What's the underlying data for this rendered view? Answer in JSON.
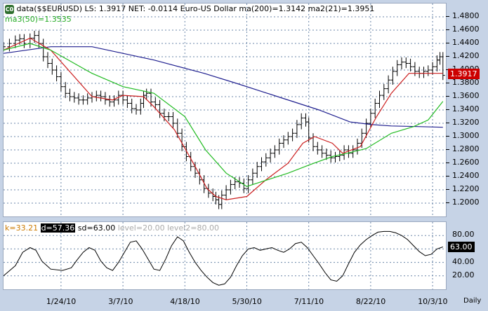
{
  "header": {
    "logo": "C0",
    "text": "data($$EURUSD) LS: 1.3917  NET: -0.0114  Euro-US Dollar ma(200)=1.3142  ma2(21)=1.3951",
    "ma3": "ma3(50)=1.3535"
  },
  "osc_header": {
    "k": "k=33.21",
    "d": "d=57.36",
    "sd": "sd=63.00",
    "level1": "level=20.00",
    "level2": "level2=80.00"
  },
  "last_price_tag": "1.3917",
  "osc_value_tag": "63.00",
  "period_label": "Daily",
  "colors": {
    "price": "#000000",
    "ma200": "#1f1f8f",
    "ma21": "#cc1f1f",
    "ma50": "#22bb22",
    "grid": "#6a86a8",
    "tag_bg": "#cc0000"
  },
  "chart_data": [
    {
      "type": "ohlc",
      "title": "data($$EURUSD) LS: 1.3917 NET: -0.0114 Euro-US Dollar",
      "ylim": [
        1.18,
        1.5
      ],
      "y_ticks": [
        "1.4800",
        "1.4600",
        "1.4400",
        "1.4200",
        "1.4000",
        "1.3800",
        "1.3600",
        "1.3400",
        "1.3200",
        "1.3000",
        "1.2800",
        "1.2600",
        "1.2400",
        "1.2200",
        "1.2000"
      ],
      "x_ticks": [
        "1/24/10",
        "3/7/10",
        "4/18/10",
        "5/30/10",
        "7/11/10",
        "8/22/10",
        "10/3/10"
      ],
      "x_range_days": [
        -18,
        282
      ],
      "grid": "dashed",
      "series": [
        {
          "name": "ma(200)",
          "values": [
            [
              -18,
              1.425
            ],
            [
              14,
              1.435
            ],
            [
              42,
              1.435
            ],
            [
              84,
              1.415
            ],
            [
              118,
              1.395
            ],
            [
              140,
              1.38
            ],
            [
              168,
              1.36
            ],
            [
              196,
              1.34
            ],
            [
              217,
              1.322
            ],
            [
              232,
              1.318
            ],
            [
              245,
              1.316
            ],
            [
              265,
              1.315
            ],
            [
              280,
              1.314
            ]
          ]
        },
        {
          "name": "ma2(21)",
          "values": [
            [
              -18,
              1.43
            ],
            [
              0,
              1.448
            ],
            [
              14,
              1.43
            ],
            [
              42,
              1.36
            ],
            [
              56,
              1.355
            ],
            [
              63,
              1.362
            ],
            [
              77,
              1.36
            ],
            [
              84,
              1.345
            ],
            [
              98,
              1.31
            ],
            [
              112,
              1.255
            ],
            [
              120,
              1.222
            ],
            [
              126,
              1.21
            ],
            [
              133,
              1.205
            ],
            [
              147,
              1.21
            ],
            [
              160,
              1.235
            ],
            [
              175,
              1.26
            ],
            [
              185,
              1.29
            ],
            [
              193,
              1.3
            ],
            [
              205,
              1.29
            ],
            [
              212,
              1.275
            ],
            [
              224,
              1.285
            ],
            [
              235,
              1.33
            ],
            [
              245,
              1.365
            ],
            [
              257,
              1.395
            ],
            [
              270,
              1.395
            ],
            [
              280,
              1.395
            ]
          ]
        },
        {
          "name": "ma3(50)",
          "values": [
            [
              -18,
              1.43
            ],
            [
              0,
              1.44
            ],
            [
              14,
              1.43
            ],
            [
              42,
              1.395
            ],
            [
              63,
              1.375
            ],
            [
              84,
              1.365
            ],
            [
              105,
              1.33
            ],
            [
              119,
              1.28
            ],
            [
              133,
              1.245
            ],
            [
              147,
              1.225
            ],
            [
              161,
              1.235
            ],
            [
              175,
              1.245
            ],
            [
              190,
              1.258
            ],
            [
              205,
              1.27
            ],
            [
              215,
              1.275
            ],
            [
              228,
              1.282
            ],
            [
              245,
              1.305
            ],
            [
              260,
              1.315
            ],
            [
              270,
              1.325
            ],
            [
              280,
              1.353
            ]
          ]
        },
        {
          "name": "EURUSD",
          "values": [
            [
              -18,
              1.435
            ],
            [
              -14,
              1.44
            ],
            [
              -10,
              1.445
            ],
            [
              -7,
              1.447
            ],
            [
              -4,
              1.44
            ],
            [
              0,
              1.448
            ],
            [
              3,
              1.452
            ],
            [
              6,
              1.44
            ],
            [
              9,
              1.42
            ],
            [
              12,
              1.41
            ],
            [
              15,
              1.4
            ],
            [
              18,
              1.39
            ],
            [
              21,
              1.375
            ],
            [
              24,
              1.365
            ],
            [
              27,
              1.36
            ],
            [
              30,
              1.358
            ],
            [
              33,
              1.355
            ],
            [
              36,
              1.355
            ],
            [
              39,
              1.358
            ],
            [
              42,
              1.36
            ],
            [
              45,
              1.362
            ],
            [
              48,
              1.36
            ],
            [
              51,
              1.355
            ],
            [
              54,
              1.352
            ],
            [
              57,
              1.355
            ],
            [
              60,
              1.362
            ],
            [
              63,
              1.355
            ],
            [
              66,
              1.35
            ],
            [
              69,
              1.342
            ],
            [
              72,
              1.34
            ],
            [
              75,
              1.35
            ],
            [
              77,
              1.362
            ],
            [
              79,
              1.365
            ],
            [
              82,
              1.352
            ],
            [
              85,
              1.348
            ],
            [
              88,
              1.335
            ],
            [
              91,
              1.33
            ],
            [
              94,
              1.33
            ],
            [
              97,
              1.32
            ],
            [
              100,
              1.305
            ],
            [
              103,
              1.285
            ],
            [
              106,
              1.27
            ],
            [
              109,
              1.255
            ],
            [
              112,
              1.245
            ],
            [
              115,
              1.235
            ],
            [
              118,
              1.222
            ],
            [
              121,
              1.215
            ],
            [
              124,
              1.21
            ],
            [
              126,
              1.205
            ],
            [
              128,
              1.198
            ],
            [
              130,
              1.212
            ],
            [
              133,
              1.22
            ],
            [
              136,
              1.228
            ],
            [
              139,
              1.232
            ],
            [
              142,
              1.23
            ],
            [
              145,
              1.222
            ],
            [
              148,
              1.235
            ],
            [
              151,
              1.245
            ],
            [
              154,
              1.255
            ],
            [
              157,
              1.262
            ],
            [
              160,
              1.268
            ],
            [
              163,
              1.275
            ],
            [
              166,
              1.28
            ],
            [
              169,
              1.29
            ],
            [
              172,
              1.295
            ],
            [
              175,
              1.3
            ],
            [
              178,
              1.305
            ],
            [
              181,
              1.318
            ],
            [
              184,
              1.328
            ],
            [
              187,
              1.322
            ],
            [
              189,
              1.298
            ],
            [
              192,
              1.285
            ],
            [
              195,
              1.28
            ],
            [
              198,
              1.275
            ],
            [
              201,
              1.272
            ],
            [
              204,
              1.268
            ],
            [
              207,
              1.27
            ],
            [
              210,
              1.272
            ],
            [
              213,
              1.28
            ],
            [
              216,
              1.275
            ],
            [
              219,
              1.28
            ],
            [
              222,
              1.29
            ],
            [
              225,
              1.305
            ],
            [
              228,
              1.32
            ],
            [
              231,
              1.335
            ],
            [
              234,
              1.35
            ],
            [
              237,
              1.362
            ],
            [
              240,
              1.372
            ],
            [
              243,
              1.385
            ],
            [
              246,
              1.398
            ],
            [
              249,
              1.408
            ],
            [
              252,
              1.412
            ],
            [
              255,
              1.41
            ],
            [
              258,
              1.405
            ],
            [
              261,
              1.398
            ],
            [
              264,
              1.395
            ],
            [
              267,
              1.398
            ],
            [
              270,
              1.4
            ],
            [
              273,
              1.405
            ],
            [
              276,
              1.415
            ],
            [
              278,
              1.42
            ],
            [
              280,
              1.392
            ]
          ]
        }
      ]
    },
    {
      "type": "line",
      "title": "k=33.21 d=57.36 sd=63.00 level=20.00 level2=80.00",
      "ylim": [
        0,
        100
      ],
      "y_ticks": [
        "80.00",
        "60.00",
        "40.00",
        "20.00"
      ],
      "x_range_days": [
        -18,
        282
      ],
      "grid": "dashed",
      "series": [
        {
          "name": "sd",
          "values": [
            [
              -18,
              20
            ],
            [
              -10,
              35
            ],
            [
              -5,
              55
            ],
            [
              0,
              62
            ],
            [
              4,
              58
            ],
            [
              8,
              42
            ],
            [
              14,
              30
            ],
            [
              22,
              28
            ],
            [
              28,
              32
            ],
            [
              32,
              44
            ],
            [
              36,
              55
            ],
            [
              40,
              62
            ],
            [
              44,
              58
            ],
            [
              48,
              42
            ],
            [
              52,
              32
            ],
            [
              56,
              28
            ],
            [
              60,
              40
            ],
            [
              64,
              55
            ],
            [
              68,
              70
            ],
            [
              72,
              72
            ],
            [
              76,
              60
            ],
            [
              80,
              45
            ],
            [
              84,
              30
            ],
            [
              88,
              28
            ],
            [
              92,
              45
            ],
            [
              96,
              65
            ],
            [
              100,
              78
            ],
            [
              104,
              72
            ],
            [
              108,
              55
            ],
            [
              112,
              40
            ],
            [
              116,
              28
            ],
            [
              120,
              18
            ],
            [
              124,
              10
            ],
            [
              128,
              6
            ],
            [
              132,
              8
            ],
            [
              136,
              18
            ],
            [
              140,
              35
            ],
            [
              144,
              50
            ],
            [
              148,
              60
            ],
            [
              152,
              62
            ],
            [
              156,
              58
            ],
            [
              160,
              60
            ],
            [
              164,
              62
            ],
            [
              168,
              58
            ],
            [
              172,
              55
            ],
            [
              176,
              60
            ],
            [
              180,
              68
            ],
            [
              184,
              70
            ],
            [
              188,
              62
            ],
            [
              192,
              50
            ],
            [
              196,
              38
            ],
            [
              200,
              25
            ],
            [
              204,
              14
            ],
            [
              208,
              12
            ],
            [
              212,
              20
            ],
            [
              216,
              38
            ],
            [
              220,
              55
            ],
            [
              224,
              66
            ],
            [
              228,
              74
            ],
            [
              232,
              80
            ],
            [
              236,
              85
            ],
            [
              240,
              86
            ],
            [
              244,
              86
            ],
            [
              248,
              84
            ],
            [
              252,
              80
            ],
            [
              256,
              74
            ],
            [
              260,
              65
            ],
            [
              264,
              56
            ],
            [
              268,
              50
            ],
            [
              272,
              52
            ],
            [
              276,
              60
            ],
            [
              280,
              63
            ]
          ]
        }
      ]
    }
  ]
}
